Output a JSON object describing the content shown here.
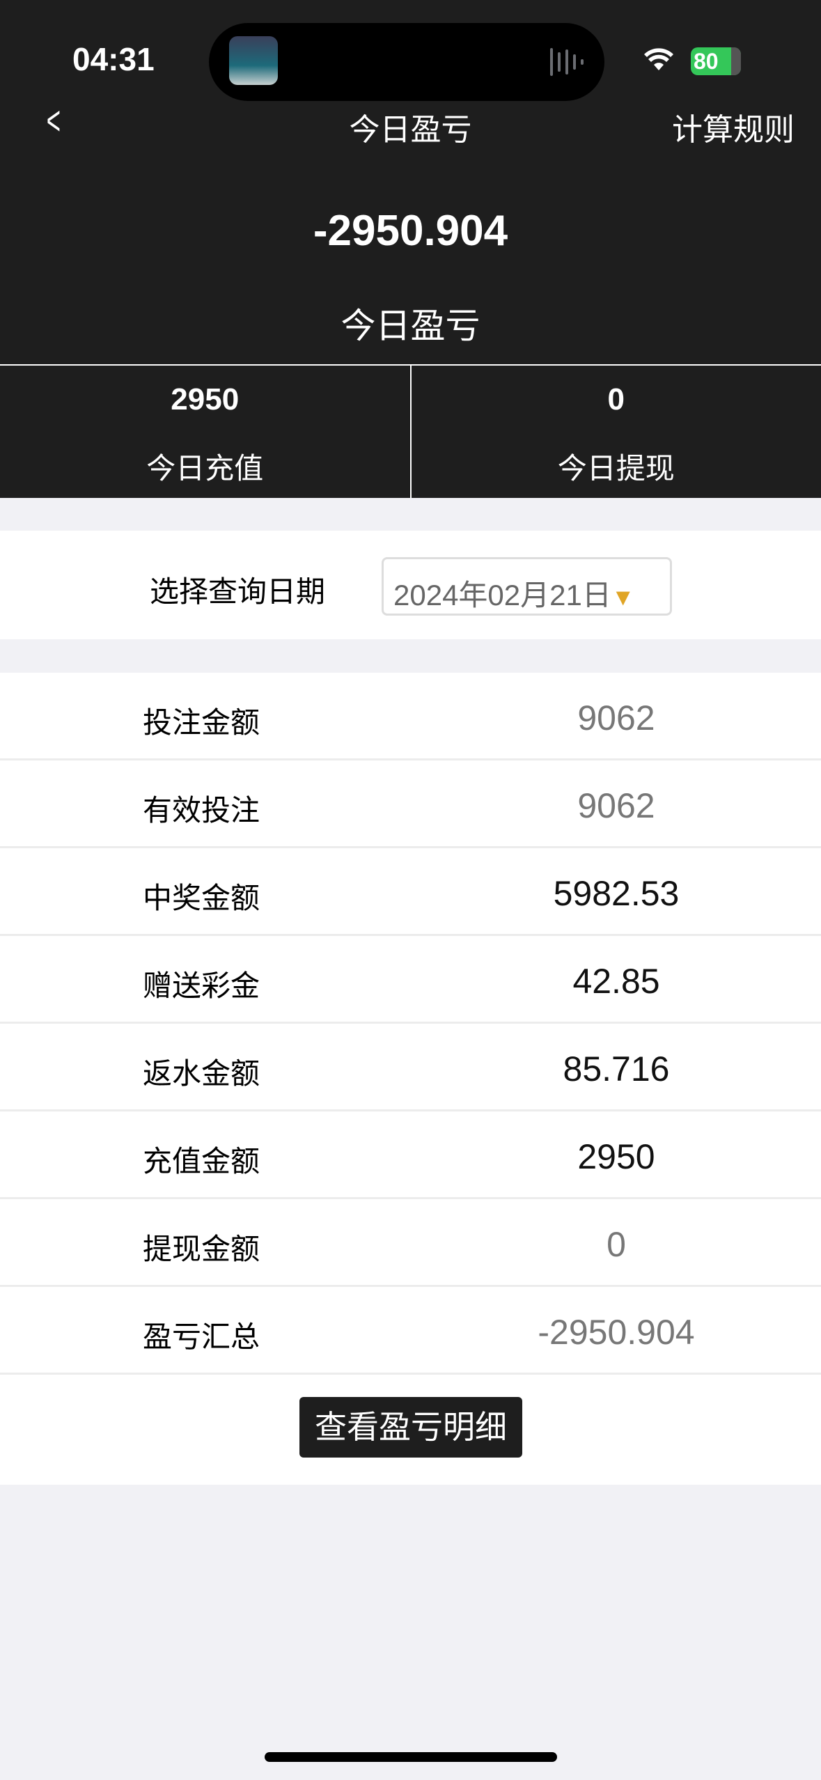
{
  "status": {
    "time": "04:31",
    "battery": "80"
  },
  "nav": {
    "back_icon": "chevron-left",
    "title": "今日盈亏",
    "rule": "计算规则"
  },
  "summary": {
    "value": "-2950.904",
    "label": "今日盈亏"
  },
  "stats": [
    {
      "value": "2950",
      "label": "今日充值"
    },
    {
      "value": "0",
      "label": "今日提现"
    }
  ],
  "date": {
    "label": "选择查询日期",
    "value": "2024年02月21日",
    "arrow": "▼"
  },
  "rows": [
    {
      "label": "投注金额",
      "value": "9062",
      "color": "#777777"
    },
    {
      "label": "有效投注",
      "value": "9062",
      "color": "#777777"
    },
    {
      "label": "中奖金额",
      "value": "5982.53",
      "color": "#111111"
    },
    {
      "label": "赠送彩金",
      "value": "42.85",
      "color": "#111111"
    },
    {
      "label": "返水金额",
      "value": "85.716",
      "color": "#111111"
    },
    {
      "label": "充值金额",
      "value": "2950",
      "color": "#111111"
    },
    {
      "label": "提现金额",
      "value": "0",
      "color": "#777777"
    },
    {
      "label": "盈亏汇总",
      "value": "-2950.904",
      "color": "#777777"
    }
  ],
  "button": "查看盈亏明细"
}
